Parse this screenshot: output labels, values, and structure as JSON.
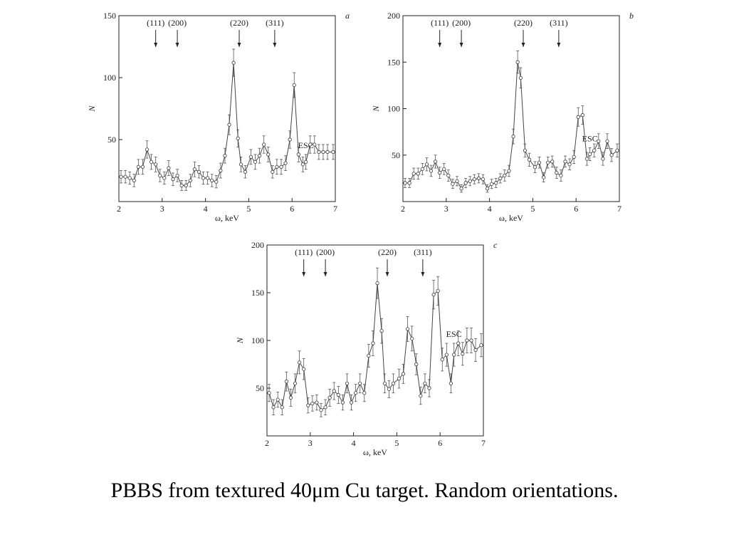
{
  "caption": "PBBS from textured 40μm Cu target. Random orientations.",
  "chart_data": [
    {
      "type": "line",
      "panel": "a",
      "xlabel": "ω, keV",
      "ylabel": "N",
      "xlim": [
        2,
        7
      ],
      "ylim": [
        0,
        150
      ],
      "xticks": [
        2,
        3,
        4,
        5,
        6,
        7
      ],
      "yticks": [
        50,
        100,
        150
      ],
      "peak_labels": [
        {
          "text": "(111)",
          "x": 2.85,
          "arrow": true
        },
        {
          "text": "(200)",
          "x": 3.35,
          "arrow": true
        },
        {
          "text": "(220)",
          "x": 4.78,
          "arrow": true
        },
        {
          "text": "(311)",
          "x": 5.6,
          "arrow": true
        },
        {
          "text": "ESC",
          "x": 6.32,
          "arrow": false
        }
      ],
      "x": [
        2.05,
        2.15,
        2.25,
        2.35,
        2.45,
        2.55,
        2.65,
        2.75,
        2.85,
        2.95,
        3.05,
        3.15,
        3.25,
        3.35,
        3.45,
        3.55,
        3.65,
        3.75,
        3.85,
        3.95,
        4.05,
        4.15,
        4.25,
        4.35,
        4.45,
        4.55,
        4.65,
        4.75,
        4.82,
        4.92,
        5.05,
        5.15,
        5.25,
        5.35,
        5.45,
        5.55,
        5.65,
        5.75,
        5.85,
        5.95,
        6.05,
        6.15,
        6.25,
        6.32,
        6.42,
        6.52,
        6.62,
        6.72,
        6.82,
        6.95
      ],
      "y": [
        20,
        20,
        19,
        17,
        28,
        28,
        42,
        32,
        30,
        21,
        19,
        27,
        18,
        21,
        13,
        13,
        17,
        26,
        24,
        19,
        19,
        17,
        16,
        25,
        37,
        62,
        112,
        51,
        30,
        24,
        36,
        32,
        37,
        46,
        38,
        24,
        28,
        28,
        31,
        50,
        94,
        38,
        30,
        32,
        46,
        46,
        40,
        40,
        40,
        40
      ],
      "err": [
        5,
        5,
        5,
        5,
        6,
        6,
        7,
        6,
        6,
        5,
        5,
        6,
        5,
        5,
        4,
        4,
        5,
        6,
        5,
        5,
        5,
        5,
        5,
        6,
        6,
        8,
        11,
        7,
        6,
        5,
        6,
        6,
        6,
        7,
        6,
        5,
        6,
        6,
        6,
        7,
        10,
        6,
        6,
        6,
        7,
        7,
        6,
        6,
        6,
        6
      ]
    },
    {
      "type": "line",
      "panel": "b",
      "xlabel": "ω, keV",
      "ylabel": "N",
      "xlim": [
        2,
        7
      ],
      "ylim": [
        0,
        200
      ],
      "xticks": [
        2,
        3,
        4,
        5,
        6,
        7
      ],
      "yticks": [
        50,
        100,
        150,
        200
      ],
      "peak_labels": [
        {
          "text": "(111)",
          "x": 2.85,
          "arrow": true
        },
        {
          "text": "(200)",
          "x": 3.35,
          "arrow": true
        },
        {
          "text": "(220)",
          "x": 4.78,
          "arrow": true
        },
        {
          "text": "(311)",
          "x": 5.6,
          "arrow": true
        },
        {
          "text": "ESC",
          "x": 6.32,
          "arrow": false
        }
      ],
      "x": [
        2.05,
        2.15,
        2.25,
        2.35,
        2.45,
        2.55,
        2.65,
        2.75,
        2.85,
        2.95,
        3.05,
        3.15,
        3.25,
        3.35,
        3.45,
        3.55,
        3.65,
        3.75,
        3.85,
        3.95,
        4.05,
        4.15,
        4.25,
        4.35,
        4.45,
        4.55,
        4.65,
        4.72,
        4.82,
        4.92,
        5.05,
        5.15,
        5.25,
        5.35,
        5.45,
        5.55,
        5.65,
        5.75,
        5.85,
        5.95,
        6.05,
        6.15,
        6.25,
        6.32,
        6.42,
        6.52,
        6.62,
        6.72,
        6.82,
        6.95
      ],
      "y": [
        20,
        20,
        30,
        30,
        35,
        40,
        33,
        43,
        31,
        35,
        28,
        19,
        22,
        14,
        20,
        22,
        24,
        25,
        24,
        14,
        19,
        20,
        25,
        28,
        33,
        70,
        150,
        133,
        55,
        45,
        37,
        42,
        26,
        42,
        43,
        31,
        28,
        43,
        40,
        48,
        91,
        93,
        46,
        51,
        55,
        65,
        46,
        65,
        50,
        55
      ],
      "err": [
        5,
        5,
        6,
        6,
        6,
        7,
        6,
        7,
        6,
        6,
        6,
        5,
        5,
        4,
        5,
        5,
        5,
        5,
        5,
        4,
        5,
        5,
        5,
        6,
        6,
        8,
        12,
        11,
        7,
        7,
        6,
        6,
        5,
        6,
        6,
        6,
        6,
        6,
        6,
        7,
        10,
        10,
        7,
        7,
        7,
        8,
        7,
        8,
        7,
        7
      ]
    },
    {
      "type": "line",
      "panel": "c",
      "xlabel": "ω, keV",
      "ylabel": "N",
      "xlim": [
        2,
        7
      ],
      "ylim": [
        0,
        200
      ],
      "xticks": [
        2,
        3,
        4,
        5,
        6,
        7
      ],
      "yticks": [
        50,
        100,
        150,
        200
      ],
      "peak_labels": [
        {
          "text": "(111)",
          "x": 2.85,
          "arrow": true
        },
        {
          "text": "(200)",
          "x": 3.35,
          "arrow": true
        },
        {
          "text": "(220)",
          "x": 4.78,
          "arrow": true
        },
        {
          "text": "(311)",
          "x": 5.6,
          "arrow": true
        },
        {
          "text": "ESC",
          "x": 6.32,
          "arrow": false
        }
      ],
      "x": [
        2.05,
        2.15,
        2.25,
        2.35,
        2.45,
        2.55,
        2.65,
        2.75,
        2.85,
        2.95,
        3.05,
        3.15,
        3.25,
        3.35,
        3.45,
        3.55,
        3.65,
        3.75,
        3.85,
        3.95,
        4.05,
        4.15,
        4.25,
        4.35,
        4.45,
        4.55,
        4.65,
        4.72,
        4.82,
        4.92,
        5.05,
        5.15,
        5.25,
        5.35,
        5.45,
        5.55,
        5.65,
        5.75,
        5.85,
        5.95,
        6.05,
        6.15,
        6.25,
        6.32,
        6.42,
        6.52,
        6.62,
        6.72,
        6.82,
        6.95
      ],
      "y": [
        45,
        30,
        38,
        30,
        57,
        40,
        55,
        77,
        70,
        32,
        34,
        35,
        27,
        30,
        40,
        47,
        43,
        35,
        55,
        35,
        45,
        55,
        45,
        84,
        97,
        160,
        110,
        55,
        49,
        55,
        60,
        65,
        112,
        102,
        75,
        42,
        55,
        50,
        148,
        152,
        80,
        85,
        55,
        85,
        97,
        86,
        100,
        100,
        90,
        95
      ],
      "err": [
        9,
        8,
        8,
        8,
        10,
        9,
        10,
        12,
        11,
        8,
        8,
        8,
        7,
        8,
        9,
        9,
        9,
        8,
        10,
        8,
        9,
        10,
        9,
        12,
        13,
        16,
        13,
        10,
        9,
        10,
        10,
        10,
        13,
        13,
        11,
        9,
        10,
        9,
        15,
        15,
        12,
        12,
        10,
        12,
        13,
        12,
        13,
        13,
        12,
        12
      ]
    }
  ]
}
